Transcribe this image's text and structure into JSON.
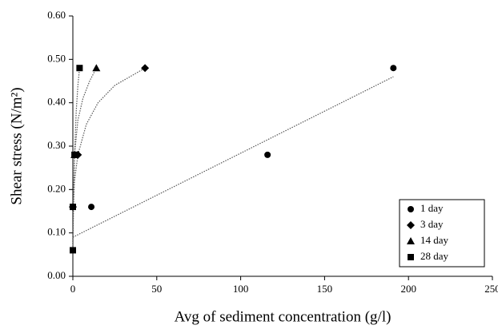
{
  "chart_data": {
    "type": "scatter",
    "x_label": "Avg of sediment concentration (g/l)",
    "y_label": "Shear stress (N/m²)",
    "xlim": [
      0,
      250
    ],
    "xticks": [
      0,
      50,
      100,
      150,
      200,
      250
    ],
    "ylim": [
      0,
      0.6
    ],
    "yticks": [
      {
        "value": 0,
        "label": "0.00"
      },
      {
        "value": 0.1,
        "label": "0.10"
      },
      {
        "value": 0.2,
        "label": "0.20"
      },
      {
        "value": 0.3,
        "label": "0.30"
      },
      {
        "value": 0.4,
        "label": "0.40"
      },
      {
        "value": 0.5,
        "label": "0.50"
      },
      {
        "value": 0.6,
        "label": "0.60"
      }
    ],
    "legend": "lower right",
    "series": [
      {
        "name": "1 day",
        "marker": "circle",
        "color": "#000000",
        "x": [
          11,
          116,
          191
        ],
        "values": [
          0.16,
          0.28,
          0.48
        ],
        "fit_x": [
          0,
          191
        ],
        "fit_y": [
          0.09,
          0.46
        ]
      },
      {
        "name": "3 day",
        "marker": "diamond",
        "color": "#000000",
        "x": [
          0,
          3,
          43
        ],
        "values": [
          0.16,
          0.28,
          0.48
        ],
        "fit_x": [
          0.3,
          1,
          3,
          8,
          15,
          25,
          43
        ],
        "fit_y": [
          0.16,
          0.22,
          0.28,
          0.35,
          0.4,
          0.44,
          0.48
        ]
      },
      {
        "name": "14 day",
        "marker": "triangle",
        "color": "#000000",
        "x": [
          1,
          14
        ],
        "values": [
          0.28,
          0.48
        ],
        "fit_x": [
          0.2,
          1,
          3,
          6,
          10,
          14
        ],
        "fit_y": [
          0.16,
          0.28,
          0.36,
          0.41,
          0.45,
          0.48
        ]
      },
      {
        "name": "28 day",
        "marker": "square",
        "color": "#000000",
        "x": [
          0,
          0,
          1,
          4
        ],
        "values": [
          0.06,
          0.16,
          0.28,
          0.48
        ],
        "fit_x": [
          0,
          0.5,
          1,
          2,
          3,
          4
        ],
        "fit_y": [
          0.06,
          0.18,
          0.28,
          0.38,
          0.44,
          0.48
        ]
      }
    ]
  }
}
